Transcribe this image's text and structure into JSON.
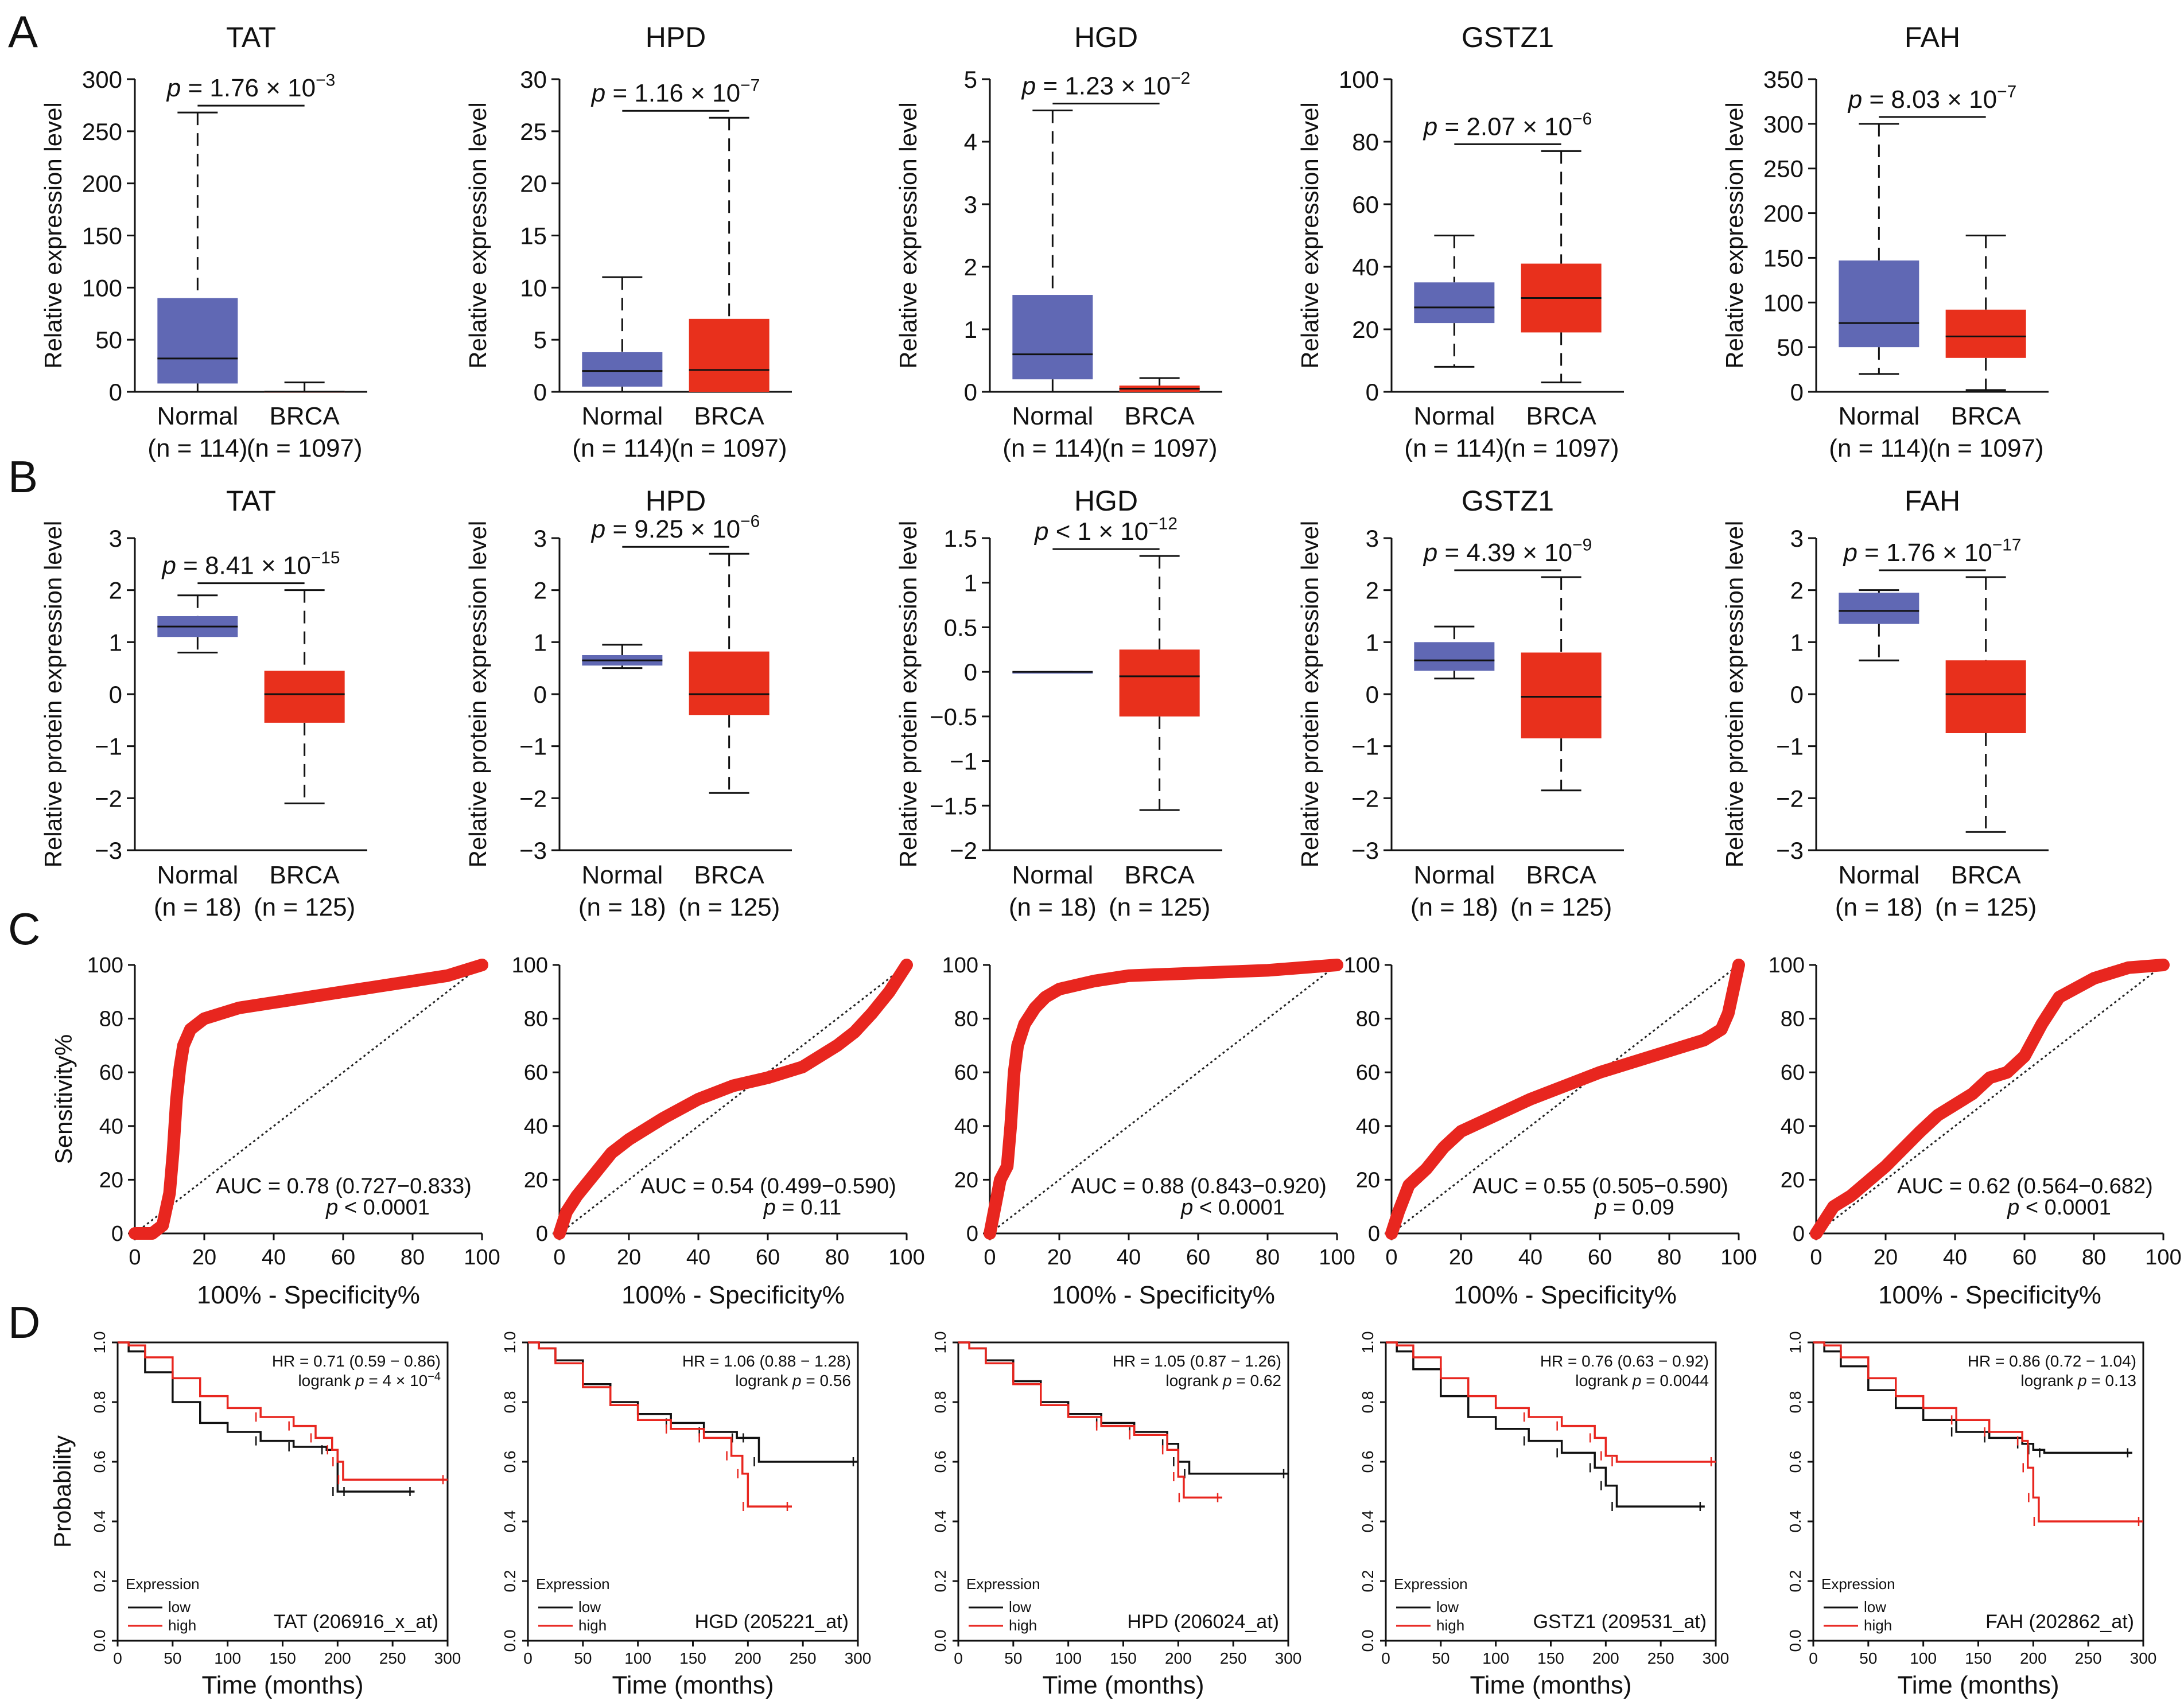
{
  "panel_letters": [
    "A",
    "B",
    "C",
    "D"
  ],
  "colors": {
    "normal_box": "#6068b4",
    "brca_box": "#e8301c",
    "roc_curve": "#e8261f",
    "km_low": "#111111",
    "km_high": "#e8261f"
  },
  "chart_data": [
    {
      "panel": "A",
      "type": "box",
      "ylabel": "Relative expression level",
      "groups": [
        "Normal",
        "BRCA"
      ],
      "group_n": [
        "(n = 114)",
        "(n = 1097)"
      ],
      "charts": [
        {
          "title": "TAT",
          "p_value": "1.76 × 10",
          "p_exp": "−3",
          "ylim": [
            0,
            300
          ],
          "yticks": [
            0,
            50,
            100,
            150,
            200,
            250,
            300
          ],
          "boxes": [
            {
              "min": 0,
              "q1": 8,
              "median": 32,
              "q3": 90,
              "max": 268
            },
            {
              "min": 0,
              "q1": 0,
              "median": 0.3,
              "q3": 1,
              "max": 9
            }
          ]
        },
        {
          "title": "HPD",
          "p_value": "1.16 × 10",
          "p_exp": "−7",
          "ylim": [
            0,
            30
          ],
          "yticks": [
            0,
            5,
            10,
            15,
            20,
            25,
            30
          ],
          "boxes": [
            {
              "min": 0,
              "q1": 0.5,
              "median": 2,
              "q3": 3.8,
              "max": 11
            },
            {
              "min": 0,
              "q1": 0,
              "median": 2.1,
              "q3": 7,
              "max": 26.3
            }
          ]
        },
        {
          "title": "HGD",
          "p_value": "1.23 × 10",
          "p_exp": "−2",
          "ylim": [
            0,
            5
          ],
          "yticks": [
            0,
            1,
            2,
            3,
            4,
            5
          ],
          "boxes": [
            {
              "min": 0,
              "q1": 0.2,
              "median": 0.6,
              "q3": 1.55,
              "max": 4.5
            },
            {
              "min": 0,
              "q1": 0,
              "median": 0.05,
              "q3": 0.1,
              "max": 0.22
            }
          ]
        },
        {
          "title": "GSTZ1",
          "p_value": "2.07 × 10",
          "p_exp": "−6",
          "ylim": [
            0,
            100
          ],
          "yticks": [
            0,
            20,
            40,
            60,
            80,
            100
          ],
          "boxes": [
            {
              "min": 8,
              "q1": 22,
              "median": 27,
              "q3": 35,
              "max": 50
            },
            {
              "min": 3,
              "q1": 19,
              "median": 30,
              "q3": 41,
              "max": 77
            }
          ]
        },
        {
          "title": "FAH",
          "p_value": "8.03 × 10",
          "p_exp": "−7",
          "ylim": [
            0,
            350
          ],
          "yticks": [
            0,
            50,
            100,
            150,
            200,
            250,
            300,
            350
          ],
          "boxes": [
            {
              "min": 20,
              "q1": 50,
              "median": 77,
              "q3": 147,
              "max": 300
            },
            {
              "min": 2,
              "q1": 38,
              "median": 62,
              "q3": 92,
              "max": 175
            }
          ]
        }
      ]
    },
    {
      "panel": "B",
      "type": "box",
      "ylabel": "Relative protein expression level",
      "groups": [
        "Normal",
        "BRCA"
      ],
      "group_n": [
        "(n = 18)",
        "(n = 125)"
      ],
      "charts": [
        {
          "title": "TAT",
          "p_value": "8.41 × 10",
          "p_exp": "−15",
          "p_rel": "",
          "ylim": [
            -3,
            3
          ],
          "yticks": [
            -3,
            -2,
            -1,
            0,
            1,
            2,
            3
          ],
          "boxes": [
            {
              "min": 0.8,
              "q1": 1.1,
              "median": 1.3,
              "q3": 1.5,
              "max": 1.9
            },
            {
              "min": -2.1,
              "q1": -0.55,
              "median": 0,
              "q3": 0.45,
              "max": 2
            }
          ]
        },
        {
          "title": "HPD",
          "p_value": "9.25 × 10",
          "p_exp": "−6",
          "p_rel": "",
          "ylim": [
            -3,
            3
          ],
          "yticks": [
            -3,
            -2,
            -1,
            0,
            1,
            2,
            3
          ],
          "boxes": [
            {
              "min": 0.5,
              "q1": 0.55,
              "median": 0.65,
              "q3": 0.75,
              "max": 0.95
            },
            {
              "min": -1.9,
              "q1": -0.4,
              "median": 0,
              "q3": 0.82,
              "max": 2.7
            }
          ]
        },
        {
          "title": "HGD",
          "p_value": "1 × 10",
          "p_exp": "−12",
          "p_rel": "<",
          "ylim": [
            -2,
            1.5
          ],
          "yticks": [
            -2,
            -1.5,
            -1,
            -0.5,
            0,
            0.5,
            1,
            1.5
          ],
          "boxes": [
            {
              "min": 0,
              "q1": 0,
              "median": 0,
              "q3": 0,
              "max": 0
            },
            {
              "min": -1.55,
              "q1": -0.5,
              "median": -0.05,
              "q3": 0.25,
              "max": 1.3
            }
          ]
        },
        {
          "title": "GSTZ1",
          "p_value": "4.39 × 10",
          "p_exp": "−9",
          "p_rel": "",
          "ylim": [
            -3,
            3
          ],
          "yticks": [
            -3,
            -2,
            -1,
            0,
            1,
            2,
            3
          ],
          "boxes": [
            {
              "min": 0.3,
              "q1": 0.45,
              "median": 0.65,
              "q3": 1,
              "max": 1.3
            },
            {
              "min": -1.85,
              "q1": -0.85,
              "median": -0.05,
              "q3": 0.8,
              "max": 2.25
            }
          ]
        },
        {
          "title": "FAH",
          "p_value": "1.76 × 10",
          "p_exp": "−17",
          "p_rel": "",
          "ylim": [
            -3,
            3
          ],
          "yticks": [
            -3,
            -2,
            -1,
            0,
            1,
            2,
            3
          ],
          "boxes": [
            {
              "min": 0.65,
              "q1": 1.35,
              "median": 1.6,
              "q3": 1.95,
              "max": 2
            },
            {
              "min": -2.65,
              "q1": -0.75,
              "median": 0,
              "q3": 0.65,
              "max": 2.25
            }
          ]
        }
      ]
    },
    {
      "panel": "C",
      "type": "line",
      "xlabel": "100% - Specificity%",
      "ylabel": "Sensitivity%",
      "xlim": [
        0,
        100
      ],
      "ylim": [
        0,
        100
      ],
      "xticks": [
        0,
        20,
        40,
        60,
        80,
        100
      ],
      "yticks": [
        0,
        20,
        40,
        60,
        80,
        100
      ],
      "charts": [
        {
          "auc": "AUC = 0.78 (0.727−0.833)",
          "p_text": "< 0.0001",
          "x": [
            0,
            5,
            8,
            10,
            11,
            12,
            13,
            14,
            16,
            20,
            30,
            40,
            50,
            60,
            70,
            80,
            90,
            100
          ],
          "y": [
            0,
            0,
            3,
            15,
            30,
            50,
            62,
            70,
            76,
            80,
            84,
            86,
            88,
            90,
            92,
            94,
            96,
            100
          ]
        },
        {
          "auc": "AUC = 0.54 (0.499−0.590)",
          "p_text": "= 0.11",
          "x": [
            0,
            2,
            5,
            10,
            15,
            20,
            30,
            40,
            50,
            60,
            70,
            80,
            85,
            90,
            95,
            100
          ],
          "y": [
            0,
            8,
            14,
            22,
            30,
            35,
            43,
            50,
            55,
            58,
            62,
            70,
            75,
            82,
            90,
            100
          ]
        },
        {
          "auc": "AUC = 0.88 (0.843−0.920)",
          "p_text": "< 0.0001",
          "x": [
            0,
            3,
            5,
            6,
            7,
            8,
            10,
            13,
            16,
            20,
            30,
            40,
            60,
            80,
            100
          ],
          "y": [
            0,
            20,
            25,
            40,
            60,
            70,
            78,
            84,
            88,
            91,
            94,
            96,
            97,
            98,
            100
          ]
        },
        {
          "auc": "AUC = 0.55 (0.505−0.590)",
          "p_text": "= 0.09",
          "x": [
            0,
            2,
            5,
            10,
            15,
            20,
            30,
            40,
            50,
            60,
            70,
            80,
            85,
            90,
            95,
            97,
            98,
            100
          ],
          "y": [
            0,
            8,
            18,
            24,
            32,
            38,
            44,
            50,
            55,
            60,
            64,
            68,
            70,
            72,
            76,
            82,
            88,
            100
          ]
        },
        {
          "auc": "AUC = 0.62 (0.564−0.682)",
          "p_text": "< 0.0001",
          "x": [
            0,
            5,
            10,
            20,
            30,
            35,
            40,
            45,
            50,
            55,
            60,
            65,
            70,
            80,
            90,
            100
          ],
          "y": [
            0,
            10,
            14,
            25,
            38,
            44,
            48,
            52,
            58,
            60,
            66,
            78,
            88,
            95,
            99,
            100
          ]
        }
      ]
    },
    {
      "panel": "D",
      "type": "line",
      "xlabel": "Time (months)",
      "ylabel": "Probability",
      "legend_title": "Expression",
      "legend": [
        "low",
        "high"
      ],
      "xlim": [
        0,
        300
      ],
      "ylim": [
        0,
        1
      ],
      "xticks": [
        0,
        50,
        100,
        150,
        200,
        250,
        300
      ],
      "yticks": [
        "0.0",
        "0.2",
        "0.4",
        "0.6",
        "0.8",
        "1.0"
      ],
      "charts": [
        {
          "label": "TAT (206916_x_at)",
          "hr": "HR = 0.71 (0.59 − 0.86)",
          "logrank": "4 × 10",
          "logrank_exp": "−4",
          "low": {
            "t": [
              0,
              10,
              25,
              50,
              75,
              100,
              130,
              160,
              190,
              200,
              210,
              270
            ],
            "s": [
              1,
              0.97,
              0.9,
              0.8,
              0.73,
              0.7,
              0.67,
              0.65,
              0.64,
              0.5,
              0.5,
              0.5
            ]
          },
          "high": {
            "t": [
              0,
              10,
              25,
              50,
              75,
              100,
              130,
              160,
              180,
              195,
              200,
              205,
              300
            ],
            "s": [
              1,
              0.99,
              0.95,
              0.88,
              0.82,
              0.78,
              0.75,
              0.72,
              0.68,
              0.64,
              0.6,
              0.54,
              0.54
            ]
          }
        },
        {
          "label": "HGD (205221_at)",
          "hr": "HR = 1.06 (0.88 − 1.28)",
          "logrank": "0.56",
          "logrank_exp": "",
          "low": {
            "t": [
              0,
              10,
              25,
              50,
              75,
              100,
              130,
              160,
              190,
              200,
              210,
              300
            ],
            "s": [
              1,
              0.98,
              0.94,
              0.86,
              0.8,
              0.76,
              0.73,
              0.7,
              0.68,
              0.68,
              0.6,
              0.6
            ]
          },
          "high": {
            "t": [
              0,
              10,
              25,
              50,
              75,
              100,
              130,
              160,
              185,
              195,
              200,
              240
            ],
            "s": [
              1,
              0.98,
              0.93,
              0.85,
              0.79,
              0.74,
              0.71,
              0.68,
              0.62,
              0.56,
              0.45,
              0.45
            ]
          }
        },
        {
          "label": "HPD (206024_at)",
          "hr": "HR = 1.05 (0.87 − 1.26)",
          "logrank": "0.62",
          "logrank_exp": "",
          "low": {
            "t": [
              0,
              10,
              25,
              50,
              75,
              100,
              130,
              160,
              190,
              200,
              210,
              300
            ],
            "s": [
              1,
              0.98,
              0.94,
              0.87,
              0.8,
              0.76,
              0.73,
              0.7,
              0.66,
              0.6,
              0.56,
              0.56
            ]
          },
          "high": {
            "t": [
              0,
              10,
              25,
              50,
              75,
              100,
              130,
              160,
              190,
              200,
              205,
              240
            ],
            "s": [
              1,
              0.98,
              0.93,
              0.86,
              0.79,
              0.75,
              0.72,
              0.69,
              0.64,
              0.55,
              0.48,
              0.48
            ]
          }
        },
        {
          "label": "GSTZ1 (209531_at)",
          "hr": "HR = 0.76 (0.63 − 0.92)",
          "logrank": "0.0044",
          "logrank_exp": "",
          "low": {
            "t": [
              0,
              10,
              25,
              50,
              75,
              100,
              130,
              160,
              190,
              200,
              210,
              290
            ],
            "s": [
              1,
              0.97,
              0.91,
              0.82,
              0.75,
              0.71,
              0.67,
              0.63,
              0.58,
              0.52,
              0.45,
              0.45
            ]
          },
          "high": {
            "t": [
              0,
              10,
              25,
              50,
              75,
              100,
              130,
              160,
              190,
              200,
              210,
              300
            ],
            "s": [
              1,
              0.99,
              0.95,
              0.88,
              0.82,
              0.78,
              0.75,
              0.72,
              0.68,
              0.62,
              0.6,
              0.6
            ]
          }
        },
        {
          "label": "FAH (202862_at)",
          "hr": "HR = 0.86 (0.72 − 1.04)",
          "logrank": "0.13",
          "logrank_exp": "",
          "low": {
            "t": [
              0,
              10,
              25,
              50,
              75,
              100,
              130,
              160,
              190,
              200,
              210,
              290
            ],
            "s": [
              1,
              0.97,
              0.92,
              0.84,
              0.78,
              0.74,
              0.7,
              0.68,
              0.66,
              0.64,
              0.63,
              0.63
            ]
          },
          "high": {
            "t": [
              0,
              10,
              25,
              50,
              75,
              100,
              130,
              160,
              190,
              195,
              200,
              205,
              300
            ],
            "s": [
              1,
              0.99,
              0.95,
              0.88,
              0.82,
              0.78,
              0.74,
              0.7,
              0.67,
              0.58,
              0.48,
              0.4,
              0.4
            ]
          }
        }
      ]
    }
  ]
}
